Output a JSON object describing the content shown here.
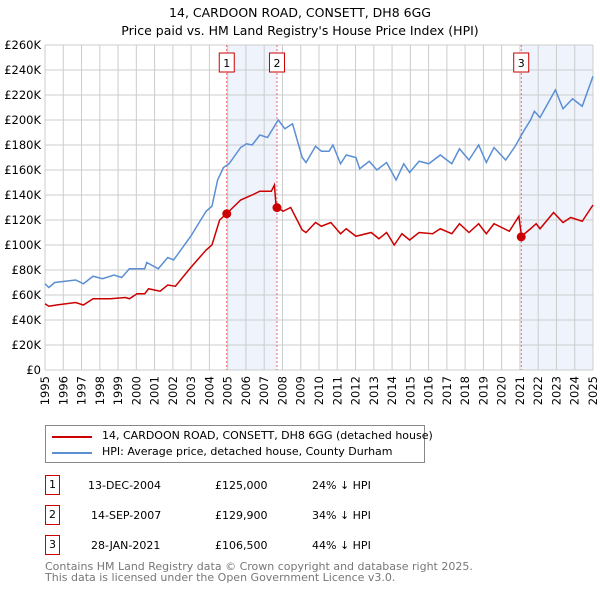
{
  "chart_data": {
    "type": "line",
    "title": "14, CARDOON ROAD, CONSETT, DH8 6GG",
    "subtitle": "Price paid vs. HM Land Registry's House Price Index (HPI)",
    "xlim": [
      1995,
      2025
    ],
    "ylim": [
      0,
      260000
    ],
    "grid": true,
    "y_ticks": [
      {
        "v": 0,
        "label": "£0"
      },
      {
        "v": 20000,
        "label": "£20K"
      },
      {
        "v": 40000,
        "label": "£40K"
      },
      {
        "v": 60000,
        "label": "£60K"
      },
      {
        "v": 80000,
        "label": "£80K"
      },
      {
        "v": 100000,
        "label": "£100K"
      },
      {
        "v": 120000,
        "label": "£120K"
      },
      {
        "v": 140000,
        "label": "£140K"
      },
      {
        "v": 160000,
        "label": "£160K"
      },
      {
        "v": 180000,
        "label": "£180K"
      },
      {
        "v": 200000,
        "label": "£200K"
      },
      {
        "v": 220000,
        "label": "£220K"
      },
      {
        "v": 240000,
        "label": "£240K"
      },
      {
        "v": 260000,
        "label": "£260K"
      }
    ],
    "x_ticks": [
      "1995",
      "1996",
      "1997",
      "1998",
      "1999",
      "2000",
      "2001",
      "2002",
      "2003",
      "2004",
      "2005",
      "2006",
      "2007",
      "2008",
      "2009",
      "2010",
      "2011",
      "2012",
      "2013",
      "2014",
      "2015",
      "2016",
      "2017",
      "2018",
      "2019",
      "2020",
      "2021",
      "2022",
      "2023",
      "2024",
      "2025"
    ],
    "series": [
      {
        "name": "14, CARDOON ROAD, CONSETT, DH8 6GG (detached house)",
        "color": "#cc0000",
        "points": [
          [
            1995.0,
            53
          ],
          [
            1995.21,
            51
          ],
          [
            1995.63,
            52
          ],
          [
            1996.68,
            54
          ],
          [
            1997.1,
            52
          ],
          [
            1997.63,
            57
          ],
          [
            1998.57,
            57
          ],
          [
            1999.41,
            58
          ],
          [
            1999.62,
            57
          ],
          [
            2000.04,
            61
          ],
          [
            2000.46,
            61
          ],
          [
            2000.67,
            65
          ],
          [
            2001.3,
            63
          ],
          [
            2001.72,
            68
          ],
          [
            2002.14,
            67
          ],
          [
            2002.98,
            82
          ],
          [
            2003.82,
            96
          ],
          [
            2004.14,
            100
          ],
          [
            2004.56,
            120
          ],
          [
            2004.94,
            125
          ],
          [
            2005.71,
            136
          ],
          [
            2006.34,
            140
          ],
          [
            2006.76,
            143
          ],
          [
            2007.39,
            143
          ],
          [
            2007.56,
            148
          ],
          [
            2007.65,
            131
          ],
          [
            2008.03,
            127
          ],
          [
            2008.45,
            130
          ],
          [
            2009.08,
            112
          ],
          [
            2009.29,
            110
          ],
          [
            2009.81,
            118
          ],
          [
            2010.13,
            115
          ],
          [
            2010.65,
            118
          ],
          [
            2011.18,
            109
          ],
          [
            2011.49,
            113
          ],
          [
            2012.02,
            107
          ],
          [
            2012.86,
            110
          ],
          [
            2013.28,
            105
          ],
          [
            2013.7,
            110
          ],
          [
            2014.12,
            100
          ],
          [
            2014.54,
            109
          ],
          [
            2014.96,
            104
          ],
          [
            2015.48,
            110
          ],
          [
            2016.22,
            109
          ],
          [
            2016.64,
            113
          ],
          [
            2017.27,
            109
          ],
          [
            2017.69,
            117
          ],
          [
            2018.21,
            110
          ],
          [
            2018.74,
            117
          ],
          [
            2019.16,
            109
          ],
          [
            2019.58,
            117
          ],
          [
            2020.42,
            111
          ],
          [
            2020.94,
            123
          ],
          [
            2021.09,
            107
          ],
          [
            2021.58,
            113
          ],
          [
            2021.89,
            117
          ],
          [
            2022.1,
            113
          ],
          [
            2022.84,
            126
          ],
          [
            2023.36,
            118
          ],
          [
            2023.78,
            122
          ],
          [
            2024.41,
            119
          ],
          [
            2025.0,
            132
          ]
        ]
      },
      {
        "name": "HPI: Average price, detached house, County Durham",
        "color": "#5b8fd4",
        "points": [
          [
            1995.0,
            69
          ],
          [
            1995.21,
            66
          ],
          [
            1995.53,
            70
          ],
          [
            1996.68,
            72
          ],
          [
            1997.1,
            69
          ],
          [
            1997.63,
            75
          ],
          [
            1998.15,
            73
          ],
          [
            1998.78,
            76
          ],
          [
            1999.2,
            74
          ],
          [
            1999.62,
            81
          ],
          [
            2000.46,
            81
          ],
          [
            2000.57,
            86
          ],
          [
            2001.2,
            81
          ],
          [
            2001.72,
            90
          ],
          [
            2002.04,
            88
          ],
          [
            2002.98,
            107
          ],
          [
            2003.82,
            127
          ],
          [
            2004.14,
            131
          ],
          [
            2004.45,
            152
          ],
          [
            2004.77,
            162
          ],
          [
            2005.08,
            165
          ],
          [
            2005.71,
            178
          ],
          [
            2006.03,
            181
          ],
          [
            2006.34,
            180
          ],
          [
            2006.76,
            188
          ],
          [
            2007.18,
            186
          ],
          [
            2007.77,
            200
          ],
          [
            2008.13,
            193
          ],
          [
            2008.55,
            197
          ],
          [
            2009.08,
            170
          ],
          [
            2009.29,
            166
          ],
          [
            2009.81,
            179
          ],
          [
            2010.13,
            175
          ],
          [
            2010.55,
            175
          ],
          [
            2010.76,
            180
          ],
          [
            2011.18,
            165
          ],
          [
            2011.49,
            172
          ],
          [
            2012.02,
            170
          ],
          [
            2012.23,
            161
          ],
          [
            2012.75,
            167
          ],
          [
            2013.17,
            160
          ],
          [
            2013.7,
            166
          ],
          [
            2014.22,
            152
          ],
          [
            2014.64,
            165
          ],
          [
            2014.96,
            158
          ],
          [
            2015.48,
            167
          ],
          [
            2016.01,
            165
          ],
          [
            2016.64,
            172
          ],
          [
            2017.27,
            165
          ],
          [
            2017.69,
            177
          ],
          [
            2018.21,
            168
          ],
          [
            2018.74,
            180
          ],
          [
            2019.16,
            166
          ],
          [
            2019.58,
            178
          ],
          [
            2020.22,
            168
          ],
          [
            2020.74,
            179
          ],
          [
            2021.16,
            190
          ],
          [
            2021.58,
            200
          ],
          [
            2021.79,
            207
          ],
          [
            2022.1,
            202
          ],
          [
            2022.94,
            224
          ],
          [
            2023.36,
            209
          ],
          [
            2023.88,
            217
          ],
          [
            2024.41,
            211
          ],
          [
            2025.0,
            235
          ]
        ]
      }
    ],
    "sales": [
      {
        "id": "1",
        "year": 2004.95,
        "price": 125000,
        "date": "13-DEC-2004",
        "price_label": "£125,000",
        "hpi": "24% ↓ HPI"
      },
      {
        "id": "2",
        "year": 2007.7,
        "price": 129900,
        "date": "14-SEP-2007",
        "price_label": "£129,900",
        "hpi": "34% ↓ HPI"
      },
      {
        "id": "3",
        "year": 2021.07,
        "price": 106500,
        "date": "28-JAN-2021",
        "price_label": "£106,500",
        "hpi": "44% ↓ HPI"
      }
    ],
    "shaded_ranges": [
      [
        2004.95,
        2007.7
      ],
      [
        2021.07,
        2025
      ]
    ]
  },
  "footer": {
    "line1": "Contains HM Land Registry data © Crown copyright and database right 2025.",
    "line2": "This data is licensed under the Open Government Licence v3.0."
  }
}
